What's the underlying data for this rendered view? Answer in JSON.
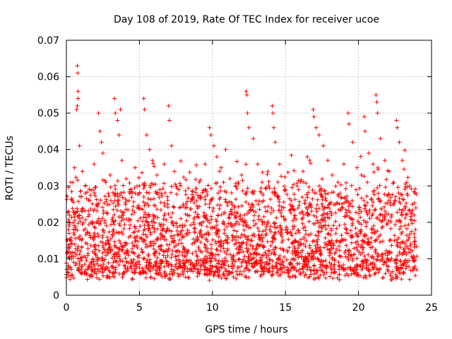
{
  "chart_data": {
    "type": "scatter",
    "title": "Day 108 of 2019, Rate Of TEC Index for receiver ucoe",
    "xlabel": "GPS time / hours",
    "ylabel": "ROTI / TECUs",
    "xlim": [
      0,
      25
    ],
    "ylim": [
      0,
      0.07
    ],
    "xticks": [
      0,
      5,
      10,
      15,
      20,
      25
    ],
    "yticks": [
      0,
      0.01,
      0.02,
      0.03,
      0.04,
      0.05,
      0.06,
      0.07
    ],
    "xtick_labels": [
      "0",
      "5",
      "10",
      "15",
      "20",
      "25"
    ],
    "ytick_labels": [
      "0",
      "0.01",
      "0.02",
      "0.03",
      "0.04",
      "0.05",
      "0.06",
      "0.07"
    ],
    "grid": true,
    "marker": "plus",
    "color": "#ff0000",
    "series": [
      {
        "name": "ROTI",
        "points": [
          [
            0.1,
            0.012
          ],
          [
            0.2,
            0.02
          ],
          [
            0.3,
            0.031
          ],
          [
            0.4,
            0.026
          ],
          [
            0.55,
            0.035
          ],
          [
            0.6,
            0.018
          ],
          [
            0.75,
            0.063
          ],
          [
            0.78,
            0.061
          ],
          [
            0.8,
            0.056
          ],
          [
            0.8,
            0.054
          ],
          [
            0.75,
            0.052
          ],
          [
            0.7,
            0.051
          ],
          [
            0.9,
            0.041
          ],
          [
            1.1,
            0.034
          ],
          [
            1.3,
            0.03
          ],
          [
            1.6,
            0.026
          ],
          [
            1.9,
            0.036
          ],
          [
            2.2,
            0.05
          ],
          [
            2.3,
            0.045
          ],
          [
            2.4,
            0.042
          ],
          [
            2.5,
            0.039
          ],
          [
            2.7,
            0.031
          ],
          [
            3.0,
            0.033
          ],
          [
            3.3,
            0.054
          ],
          [
            3.35,
            0.05
          ],
          [
            3.5,
            0.048
          ],
          [
            3.6,
            0.044
          ],
          [
            3.7,
            0.051
          ],
          [
            3.8,
            0.037
          ],
          [
            4.1,
            0.032
          ],
          [
            4.4,
            0.029
          ],
          [
            4.7,
            0.035
          ],
          [
            5.0,
            0.03
          ],
          [
            5.3,
            0.054
          ],
          [
            5.35,
            0.051
          ],
          [
            5.5,
            0.044
          ],
          [
            5.7,
            0.04
          ],
          [
            5.9,
            0.037
          ],
          [
            6.2,
            0.033
          ],
          [
            6.4,
            0.029
          ],
          [
            6.7,
            0.036
          ],
          [
            7.0,
            0.052
          ],
          [
            7.05,
            0.048
          ],
          [
            7.2,
            0.041
          ],
          [
            7.4,
            0.034
          ],
          [
            7.7,
            0.029
          ],
          [
            8.0,
            0.025
          ],
          [
            8.3,
            0.022
          ],
          [
            8.7,
            0.027
          ],
          [
            9.1,
            0.031
          ],
          [
            9.5,
            0.036
          ],
          [
            9.8,
            0.046
          ],
          [
            9.9,
            0.044
          ],
          [
            10.1,
            0.041
          ],
          [
            10.3,
            0.038
          ],
          [
            10.6,
            0.035
          ],
          [
            10.9,
            0.04
          ],
          [
            11.2,
            0.032
          ],
          [
            11.6,
            0.03
          ],
          [
            12.0,
            0.033
          ],
          [
            12.3,
            0.056
          ],
          [
            12.35,
            0.055
          ],
          [
            12.4,
            0.05
          ],
          [
            12.5,
            0.046
          ],
          [
            12.8,
            0.043
          ],
          [
            13.1,
            0.036
          ],
          [
            13.4,
            0.031
          ],
          [
            13.8,
            0.034
          ],
          [
            14.1,
            0.052
          ],
          [
            14.15,
            0.05
          ],
          [
            14.2,
            0.046
          ],
          [
            14.3,
            0.042
          ],
          [
            14.6,
            0.036
          ],
          [
            15.0,
            0.029
          ],
          [
            15.4,
            0.026
          ],
          [
            15.8,
            0.03
          ],
          [
            16.2,
            0.034
          ],
          [
            16.5,
            0.038
          ],
          [
            16.9,
            0.051
          ],
          [
            16.95,
            0.049
          ],
          [
            17.1,
            0.046
          ],
          [
            17.3,
            0.044
          ],
          [
            17.6,
            0.041
          ],
          [
            17.9,
            0.037
          ],
          [
            18.2,
            0.033
          ],
          [
            18.6,
            0.031
          ],
          [
            19.0,
            0.036
          ],
          [
            19.3,
            0.05
          ],
          [
            19.35,
            0.047
          ],
          [
            19.6,
            0.042
          ],
          [
            19.9,
            0.035
          ],
          [
            20.2,
            0.033
          ],
          [
            20.4,
            0.049
          ],
          [
            20.45,
            0.045
          ],
          [
            20.7,
            0.039
          ],
          [
            21.0,
            0.036
          ],
          [
            21.2,
            0.055
          ],
          [
            21.25,
            0.053
          ],
          [
            21.3,
            0.05
          ],
          [
            21.5,
            0.043
          ],
          [
            21.8,
            0.037
          ],
          [
            22.1,
            0.034
          ],
          [
            22.4,
            0.031
          ],
          [
            22.6,
            0.048
          ],
          [
            22.65,
            0.046
          ],
          [
            22.8,
            0.042
          ],
          [
            23.0,
            0.037
          ],
          [
            23.3,
            0.031
          ],
          [
            23.5,
            0.03
          ],
          [
            23.8,
            0.022
          ],
          [
            23.9,
            0.018
          ]
        ]
      }
    ]
  }
}
